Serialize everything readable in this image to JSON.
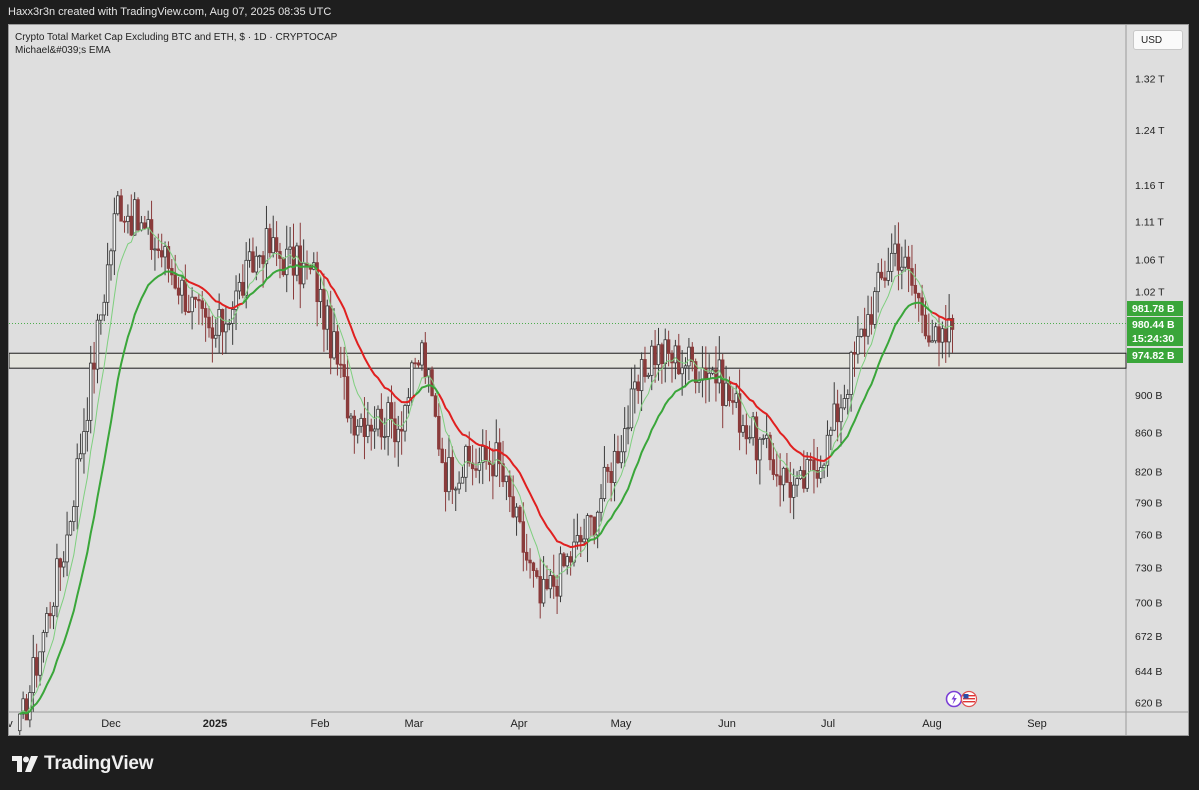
{
  "header": {
    "caption": "Haxx3r3n created with TradingView.com, Aug 07, 2025 08:35 UTC"
  },
  "legend": {
    "line1": "Crypto Total Market Cap Excluding BTC and ETH, $ · 1D · CRYPTOCAP",
    "line2": "Michael&#039;s EMA"
  },
  "currency_button": "USD",
  "brand": "TradingView",
  "icons": [
    "lightning-icon",
    "us-flag-icon",
    "tradingview-logo-icon"
  ],
  "colors": {
    "background": "#dedede",
    "candle_up": "#3a3a3a",
    "candle_down": "#8a3b3b",
    "ema_fast_light": "#7fcf7f",
    "ema_slow_green": "#3aa63a",
    "ema_red": "#e02020",
    "price_label": "#3aa63a"
  },
  "chart_data": {
    "type": "candlestick",
    "title": "Crypto Total Market Cap Excluding BTC and ETH, $ · 1D · CRYPTOCAP",
    "indicator": "Michael&#039;s EMA",
    "x_tick_labels": [
      "ov",
      "Dec",
      "2025",
      "Feb",
      "Mar",
      "Apr",
      "May",
      "Jun",
      "Jul",
      "Aug",
      "Sep"
    ],
    "y_axis": {
      "scale": "log",
      "ticks": [
        {
          "label": "1.32 T",
          "value": 1320
        },
        {
          "label": "1.24 T",
          "value": 1240
        },
        {
          "label": "1.16 T",
          "value": 1160
        },
        {
          "label": "1.11 T",
          "value": 1110
        },
        {
          "label": "1.06 T",
          "value": 1060
        },
        {
          "label": "1.02 T",
          "value": 1020
        },
        {
          "label": "900 B",
          "value": 900
        },
        {
          "label": "860 B",
          "value": 860
        },
        {
          "label": "820 B",
          "value": 820
        },
        {
          "label": "790 B",
          "value": 790
        },
        {
          "label": "760 B",
          "value": 760
        },
        {
          "label": "730 B",
          "value": 730
        },
        {
          "label": "700 B",
          "value": 700
        },
        {
          "label": "672 B",
          "value": 672
        },
        {
          "label": "644 B",
          "value": 644
        },
        {
          "label": "620 B",
          "value": 620
        }
      ]
    },
    "price_labels": [
      {
        "text": "981.78 B",
        "value": 981.78
      },
      {
        "text": "980.44 B",
        "value": 980.44
      },
      {
        "text": "15:24:30",
        "value": null
      },
      {
        "text": "974.82 B",
        "value": 974.82
      }
    ],
    "support_zone": {
      "low": 930,
      "high": 947
    },
    "current_price_line": 981.78,
    "key_points": {
      "x": [
        "2024-11-04",
        "2024-11-18",
        "2024-12-03",
        "2024-12-16",
        "2024-12-31",
        "2025-01-15",
        "2025-01-30",
        "2025-02-10",
        "2025-02-24",
        "2025-03-03",
        "2025-03-10",
        "2025-03-25",
        "2025-04-07",
        "2025-04-22",
        "2025-05-10",
        "2025-05-28",
        "2025-06-10",
        "2025-06-22",
        "2025-07-01",
        "2025-07-12",
        "2025-07-21",
        "2025-07-29",
        "2025-08-03",
        "2025-08-07"
      ],
      "close": [
        600,
        760,
        1140,
        1070,
        960,
        1080,
        1040,
        880,
        870,
        950,
        820,
        835,
        700,
        770,
        950,
        930,
        850,
        800,
        850,
        980,
        1080,
        1000,
        950,
        980
      ]
    }
  }
}
